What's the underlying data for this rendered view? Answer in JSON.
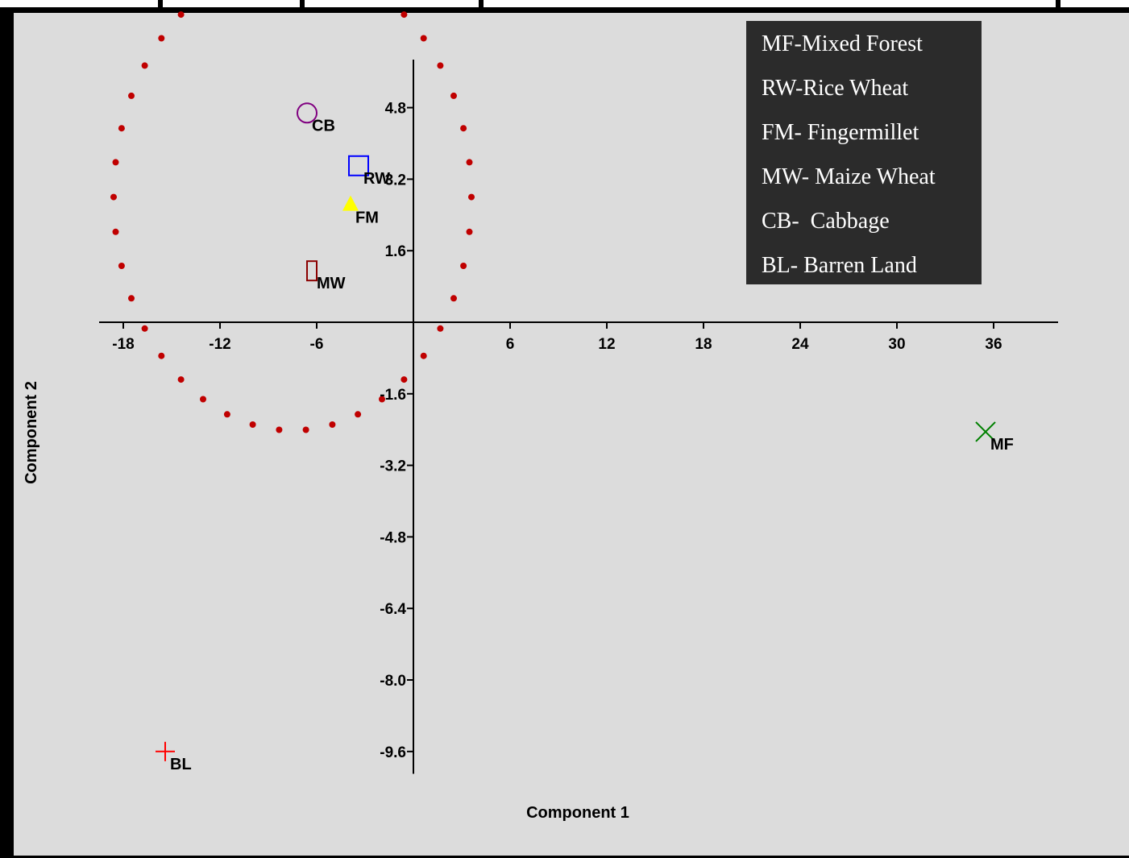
{
  "chart_data": {
    "type": "scatter",
    "xlabel": "Component 1",
    "ylabel": "Component 2",
    "xlim": [
      -19.5,
      40.0
    ],
    "ylim": [
      -10.1,
      6.0
    ],
    "xticks": [
      {
        "value": -18,
        "label": "-18"
      },
      {
        "value": -12,
        "label": "-12"
      },
      {
        "value": -6,
        "label": "-6"
      },
      {
        "value": 6,
        "label": "6"
      },
      {
        "value": 12,
        "label": "12"
      },
      {
        "value": 18,
        "label": "18"
      },
      {
        "value": 24,
        "label": "24"
      },
      {
        "value": 30,
        "label": "30"
      },
      {
        "value": 36,
        "label": "36"
      }
    ],
    "yticks": [
      {
        "value": 4.8,
        "label": "4.8"
      },
      {
        "value": 3.2,
        "label": "3.2"
      },
      {
        "value": 1.6,
        "label": "1.6"
      },
      {
        "value": -1.6,
        "label": "-1.6"
      },
      {
        "value": -3.2,
        "label": "-3.2"
      },
      {
        "value": -4.8,
        "label": "-4.8"
      },
      {
        "value": -6.4,
        "label": "-6.4"
      },
      {
        "value": -8.0,
        "label": "-8.0"
      },
      {
        "value": -9.6,
        "label": "-9.6"
      }
    ],
    "points": [
      {
        "label": "CB",
        "x": -6.6,
        "y": 4.68,
        "marker": "circle",
        "color": "#800080"
      },
      {
        "label": "RW",
        "x": -3.4,
        "y": 3.5,
        "marker": "square",
        "color": "#0000ff"
      },
      {
        "label": "FM",
        "x": -3.9,
        "y": 2.62,
        "marker": "triangle",
        "color": "#ffff00"
      },
      {
        "label": "MW",
        "x": -6.3,
        "y": 1.15,
        "marker": "rectangle",
        "color": "#8b0000"
      },
      {
        "label": "MF",
        "x": 35.5,
        "y": -2.45,
        "marker": "x",
        "color": "#008000"
      },
      {
        "label": "BL",
        "x": -15.4,
        "y": -9.6,
        "marker": "plus",
        "color": "#ff0000"
      }
    ],
    "cluster_ellipse": {
      "cx": -7.5,
      "cy": 2.8,
      "rx": 11.1,
      "ry": 5.22,
      "color": "#c00000",
      "style": "dotted"
    },
    "legend": {
      "placement": "top-right",
      "background": "#2b2b2b",
      "entries": [
        "MF-Mixed Forest",
        "RW-Rice Wheat",
        "FM- Fingermillet",
        "MW- Maize Wheat",
        "CB-  Cabbage",
        "BL- Barren Land"
      ]
    },
    "background": "#dcdcdc",
    "grid": false
  }
}
